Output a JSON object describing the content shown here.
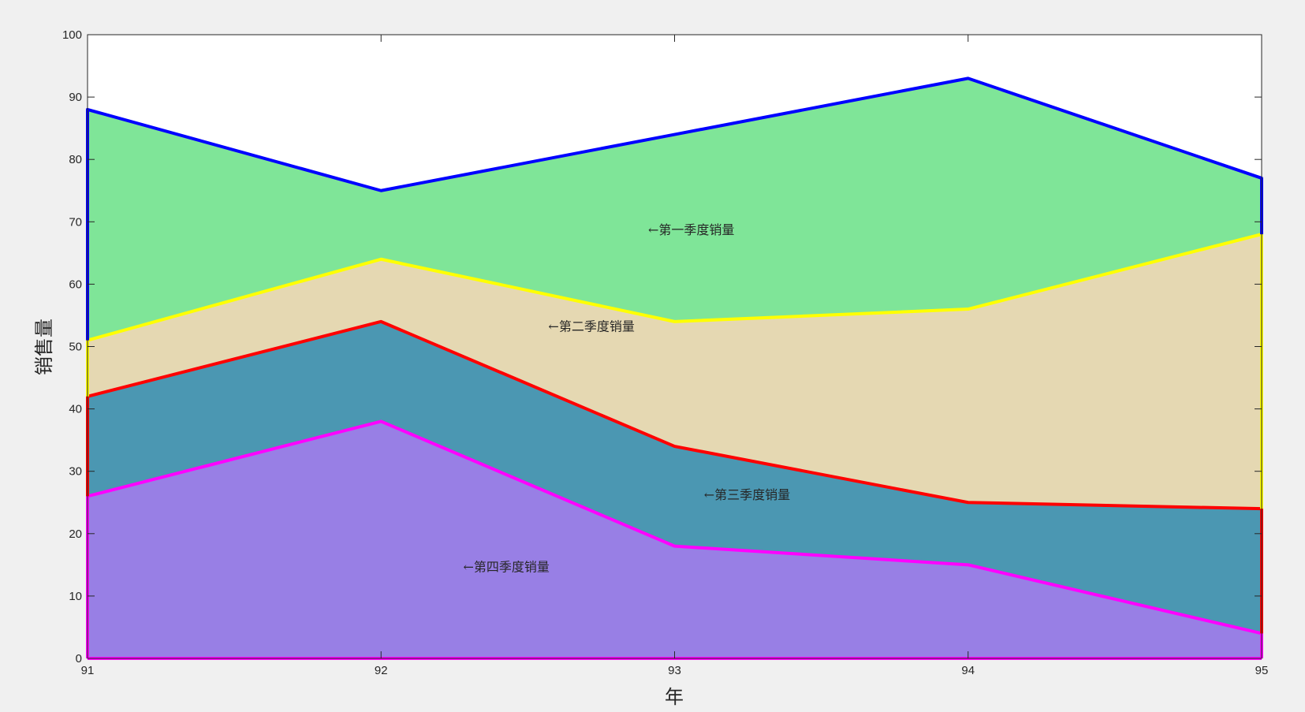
{
  "chart_data": {
    "type": "area",
    "stacked": true,
    "x": [
      91,
      92,
      93,
      94,
      95
    ],
    "xlabel": "年",
    "ylabel": "销售量",
    "xlim": [
      91,
      95
    ],
    "ylim": [
      0,
      100
    ],
    "xticks": [
      "91",
      "92",
      "93",
      "94",
      "95"
    ],
    "yticks": [
      "0",
      "10",
      "20",
      "30",
      "40",
      "50",
      "60",
      "70",
      "80",
      "90",
      "100"
    ],
    "grid": false,
    "series": [
      {
        "key": "q4",
        "values": [
          26,
          38,
          18,
          15,
          4
        ],
        "fill": "#987fe5",
        "line": "#ff00ff"
      },
      {
        "key": "q3",
        "values": [
          16,
          16,
          16,
          10,
          20
        ],
        "fill": "#4b97b2",
        "line": "#ff0000"
      },
      {
        "key": "q2",
        "values": [
          9,
          10,
          20,
          31,
          44
        ],
        "fill": "#e5d8b2",
        "line": "#ffff00"
      },
      {
        "key": "q1",
        "values": [
          37,
          11,
          30,
          37,
          9
        ],
        "fill": "#7fe598",
        "line": "#0000ff"
      }
    ],
    "annotations": [
      {
        "text": "←第一季度销量",
        "x": 92.91,
        "y": 68.8
      },
      {
        "text": "←第二季度销量",
        "x": 92.57,
        "y": 53.3
      },
      {
        "text": "←第三季度销量",
        "x": 93.1,
        "y": 26.3
      },
      {
        "text": "←第四季度销量",
        "x": 92.28,
        "y": 14.7
      }
    ]
  }
}
